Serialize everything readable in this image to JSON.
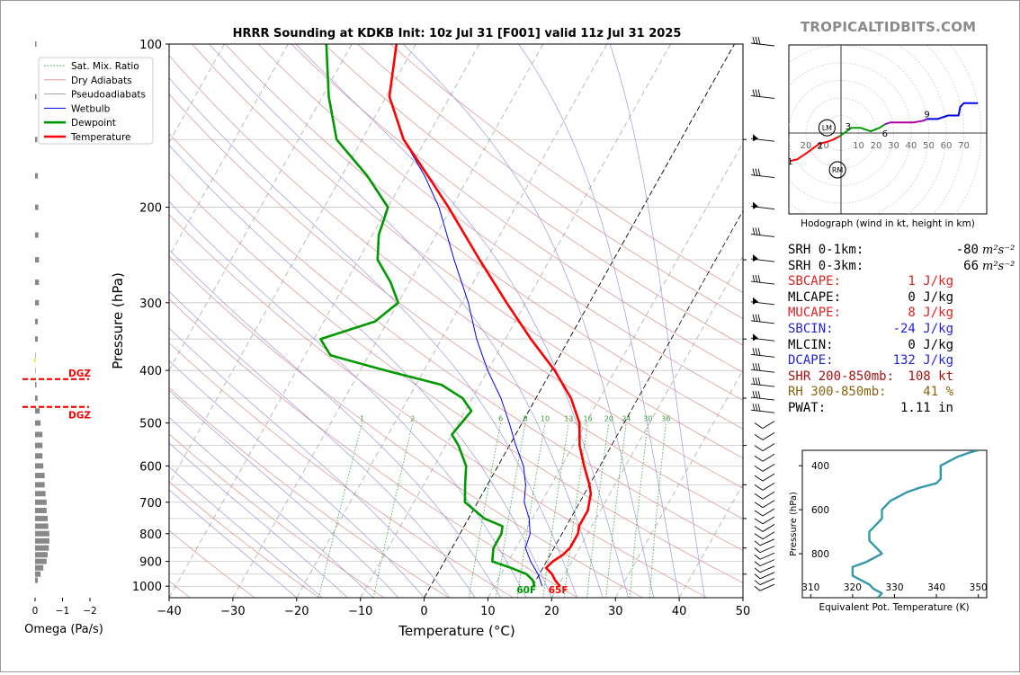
{
  "brand": "TROPICALTIDBITS.COM",
  "colors": {
    "temperature": "#ff0000",
    "dewpoint": "#009900",
    "wetbulb": "#0000ee",
    "dry_adiabat": "#d98f8f",
    "moist_adiabat": "#9a9ad8",
    "mixing_ratio": "#3a9a3a",
    "hodo_0_3": "#ff0000",
    "hodo_3_6": "#009900",
    "hodo_6_9": "#aa00aa",
    "hodo_9_12": "#0000ee",
    "theta_e": "#3399aa",
    "omega_bar": "#888888",
    "dgz": "#ff0000",
    "brand": "#8a8a8a"
  },
  "chart_data": [
    {
      "type": "line",
      "kind": "skew-t",
      "title": "HRRR Sounding at KDKB Init: 10z Jul 31 [F001] valid 11z Jul 31 2025",
      "xlabel": "Temperature (°C)",
      "ylabel": "Pressure (hPa)",
      "xlim": [
        -40,
        50
      ],
      "ylim": [
        1050,
        100
      ],
      "y_scale": "log",
      "grid": true,
      "x_ticks": [
        -40,
        -30,
        -20,
        -10,
        0,
        10,
        20,
        30,
        40,
        50
      ],
      "y_ticks": [
        100,
        200,
        300,
        400,
        500,
        600,
        700,
        800,
        900,
        1000
      ],
      "legend": {
        "position": "top-left",
        "entries": [
          "Sat. Mix. Ratio",
          "Dry Adiabats",
          "Pseudoadiabats",
          "Wetbulb",
          "Dewpoint",
          "Temperature"
        ]
      },
      "mixing_ratio_labels": [
        "1",
        "2",
        "6",
        "8",
        "10",
        "13",
        "16",
        "20",
        "24",
        "30",
        "36"
      ],
      "surface_labels": {
        "dewpoint": "60F",
        "temperature": "65F"
      },
      "series": [
        {
          "name": "Temperature",
          "points": [
            [
              1000,
              20.3
            ],
            [
              975,
              19.0
            ],
            [
              950,
              18.0
            ],
            [
              925,
              16.5
            ],
            [
              900,
              17.0
            ],
            [
              875,
              18.0
            ],
            [
              850,
              18.5
            ],
            [
              825,
              18.5
            ],
            [
              800,
              18.5
            ],
            [
              775,
              18.0
            ],
            [
              750,
              18.0
            ],
            [
              725,
              18.0
            ],
            [
              700,
              17.5
            ],
            [
              675,
              17.0
            ],
            [
              650,
              16.0
            ],
            [
              600,
              13.5
            ],
            [
              550,
              11.0
            ],
            [
              500,
              9.0
            ],
            [
              450,
              5.5
            ],
            [
              400,
              0.5
            ],
            [
              350,
              -6.0
            ],
            [
              300,
              -13.0
            ],
            [
              250,
              -21.0
            ],
            [
              200,
              -30.5
            ],
            [
              175,
              -36.5
            ],
            [
              150,
              -43.5
            ],
            [
              125,
              -49.5
            ],
            [
              100,
              -53.0
            ]
          ]
        },
        {
          "name": "Dewpoint",
          "points": [
            [
              1000,
              16.3
            ],
            [
              975,
              15.5
            ],
            [
              950,
              14.0
            ],
            [
              925,
              11.0
            ],
            [
              900,
              7.5
            ],
            [
              850,
              6.5
            ],
            [
              825,
              6.5
            ],
            [
              800,
              6.5
            ],
            [
              775,
              6.0
            ],
            [
              750,
              2.5
            ],
            [
              700,
              -2.0
            ],
            [
              650,
              -3.5
            ],
            [
              600,
              -5.0
            ],
            [
              550,
              -8.0
            ],
            [
              525,
              -10.0
            ],
            [
              500,
              -9.5
            ],
            [
              475,
              -9.0
            ],
            [
              450,
              -11.5
            ],
            [
              425,
              -16.0
            ],
            [
              400,
              -26.0
            ],
            [
              375,
              -36.0
            ],
            [
              350,
              -39.0
            ],
            [
              325,
              -32.0
            ],
            [
              300,
              -30.0
            ],
            [
              275,
              -33.0
            ],
            [
              250,
              -37.0
            ],
            [
              225,
              -39.0
            ],
            [
              200,
              -40.0
            ],
            [
              175,
              -46.0
            ],
            [
              150,
              -54.0
            ],
            [
              125,
              -59.0
            ],
            [
              100,
              -64.0
            ]
          ]
        },
        {
          "name": "Wetbulb",
          "points": [
            [
              1000,
              17.5
            ],
            [
              950,
              15.8
            ],
            [
              900,
              13.5
            ],
            [
              850,
              11.5
            ],
            [
              800,
              11.0
            ],
            [
              750,
              9.5
            ],
            [
              700,
              7.3
            ],
            [
              650,
              6.0
            ],
            [
              600,
              4.0
            ],
            [
              550,
              1.0
            ],
            [
              500,
              -2.0
            ],
            [
              450,
              -5.5
            ],
            [
              400,
              -10.0
            ],
            [
              350,
              -14.5
            ],
            [
              300,
              -19.0
            ],
            [
              250,
              -25.0
            ],
            [
              200,
              -32.0
            ],
            [
              175,
              -37.0
            ],
            [
              150,
              -43.5
            ],
            [
              125,
              -49.5
            ],
            [
              100,
              -53.0
            ]
          ]
        }
      ]
    },
    {
      "type": "bar",
      "kind": "omega-profile",
      "xlabel": "Omega (Pa/s)",
      "x_ticks": [
        0,
        -1,
        -2
      ],
      "xlim": [
        0.2,
        -2.2
      ],
      "dgz_label": "DGZ",
      "dgz_levels": [
        415,
        467
      ],
      "levels": [
        100,
        125,
        150,
        175,
        200,
        225,
        250,
        275,
        300,
        325,
        350,
        375,
        400,
        425,
        450,
        475,
        500,
        525,
        550,
        575,
        600,
        625,
        650,
        675,
        700,
        725,
        750,
        775,
        800,
        825,
        850,
        875,
        900,
        925,
        950,
        975
      ],
      "values": [
        -0.05,
        -0.05,
        -0.08,
        -0.1,
        -0.12,
        -0.12,
        -0.14,
        -0.14,
        -0.14,
        -0.1,
        -0.1,
        -0.02,
        -0.02,
        -0.05,
        -0.09,
        -0.17,
        -0.2,
        -0.27,
        -0.27,
        -0.27,
        -0.3,
        -0.35,
        -0.35,
        -0.38,
        -0.42,
        -0.42,
        -0.46,
        -0.48,
        -0.52,
        -0.52,
        -0.5,
        -0.46,
        -0.42,
        -0.3,
        -0.2,
        -0.1
      ]
    },
    {
      "type": "line",
      "kind": "hodograph",
      "title": "Hodograph (wind in kt, height in km)",
      "ring_labels": [
        "20",
        "10",
        "10",
        "20",
        "30",
        "40",
        "50",
        "60",
        "70"
      ],
      "storm_motion_labels": [
        "LM",
        "RM"
      ],
      "height_labels": [
        "1",
        "2",
        "3",
        "6",
        "9"
      ],
      "segments": [
        {
          "name": "0-3 km",
          "points": [
            [
              -29,
              -16
            ],
            [
              -25,
              -15
            ],
            [
              -19,
              -11
            ],
            [
              -15,
              -8
            ],
            [
              -12,
              -6
            ],
            [
              -8,
              -5
            ],
            [
              -5,
              -4
            ],
            [
              -1,
              -2
            ]
          ]
        },
        {
          "name": "3-6 km",
          "points": [
            [
              -1,
              -2
            ],
            [
              6,
              3
            ],
            [
              11,
              3
            ],
            [
              17,
              1
            ],
            [
              22,
              3
            ],
            [
              25,
              5
            ]
          ]
        },
        {
          "name": "6-9 km",
          "points": [
            [
              25,
              5
            ],
            [
              28,
              6
            ],
            [
              35,
              6
            ],
            [
              41,
              6
            ],
            [
              47,
              7
            ],
            [
              49,
              8
            ]
          ]
        },
        {
          "name": "9-12 km",
          "points": [
            [
              49,
              8
            ],
            [
              55,
              8
            ],
            [
              61,
              10
            ],
            [
              67,
              10
            ],
            [
              68,
              15
            ],
            [
              70,
              17
            ],
            [
              78,
              17
            ]
          ]
        }
      ]
    },
    {
      "type": "line",
      "kind": "theta-e-profile",
      "xlabel": "Equivalent Pot. Temperature (K)",
      "ylabel": "Pressure (hPa)",
      "xlim": [
        308,
        352
      ],
      "ylim": [
        1000,
        330
      ],
      "x_ticks": [
        310,
        320,
        330,
        340,
        350
      ],
      "y_ticks": [
        400,
        600,
        800
      ],
      "series": [
        {
          "name": "Theta-E",
          "points": [
            [
              1000,
              326
            ],
            [
              980,
              327
            ],
            [
              960,
              325
            ],
            [
              940,
              324
            ],
            [
              920,
              322
            ],
            [
              900,
              320
            ],
            [
              880,
              320
            ],
            [
              860,
              320
            ],
            [
              840,
              323
            ],
            [
              820,
              325
            ],
            [
              800,
              327
            ],
            [
              780,
              326
            ],
            [
              760,
              325
            ],
            [
              740,
              324
            ],
            [
              720,
              324
            ],
            [
              700,
              324
            ],
            [
              680,
              325
            ],
            [
              660,
              326
            ],
            [
              640,
              327
            ],
            [
              620,
              327
            ],
            [
              600,
              327
            ],
            [
              580,
              328
            ],
            [
              560,
              329
            ],
            [
              540,
              331
            ],
            [
              520,
              333
            ],
            [
              500,
              336
            ],
            [
              480,
              340
            ],
            [
              460,
              341
            ],
            [
              440,
              341
            ],
            [
              420,
              341
            ],
            [
              400,
              341
            ],
            [
              380,
              343
            ],
            [
              360,
              345
            ],
            [
              340,
              348
            ],
            [
              330,
              350
            ]
          ]
        }
      ]
    }
  ],
  "stats": [
    {
      "label": "SRH 0-1km:",
      "value": "-80",
      "unit": "m²s⁻²",
      "color": "#000000"
    },
    {
      "label": "SRH 0-3km:",
      "value": "66",
      "unit": "m²s⁻²",
      "color": "#000000"
    },
    {
      "label": "SBCAPE:",
      "value": "1 J/kg",
      "unit": "",
      "color": "#dd2222"
    },
    {
      "label": "MLCAPE:",
      "value": "0 J/kg",
      "unit": "",
      "color": "#000000"
    },
    {
      "label": "MUCAPE:",
      "value": "8 J/kg",
      "unit": "",
      "color": "#dd2222"
    },
    {
      "label": "SBCIN:",
      "value": "-24 J/kg",
      "unit": "",
      "color": "#2222dd"
    },
    {
      "label": "MLCIN:",
      "value": "0 J/kg",
      "unit": "",
      "color": "#000000"
    },
    {
      "label": "DCAPE:",
      "value": "132 J/kg",
      "unit": "",
      "color": "#2222dd"
    },
    {
      "label": "SHR 200-850mb:",
      "value": "108 kt",
      "unit": "",
      "color": "#aa1111"
    },
    {
      "label": "RH 300-850mb:",
      "value": "41 %",
      "unit": "",
      "color": "#886611"
    },
    {
      "label": "PWAT:",
      "value": "1.11 in",
      "unit": "",
      "color": "#000000"
    }
  ]
}
